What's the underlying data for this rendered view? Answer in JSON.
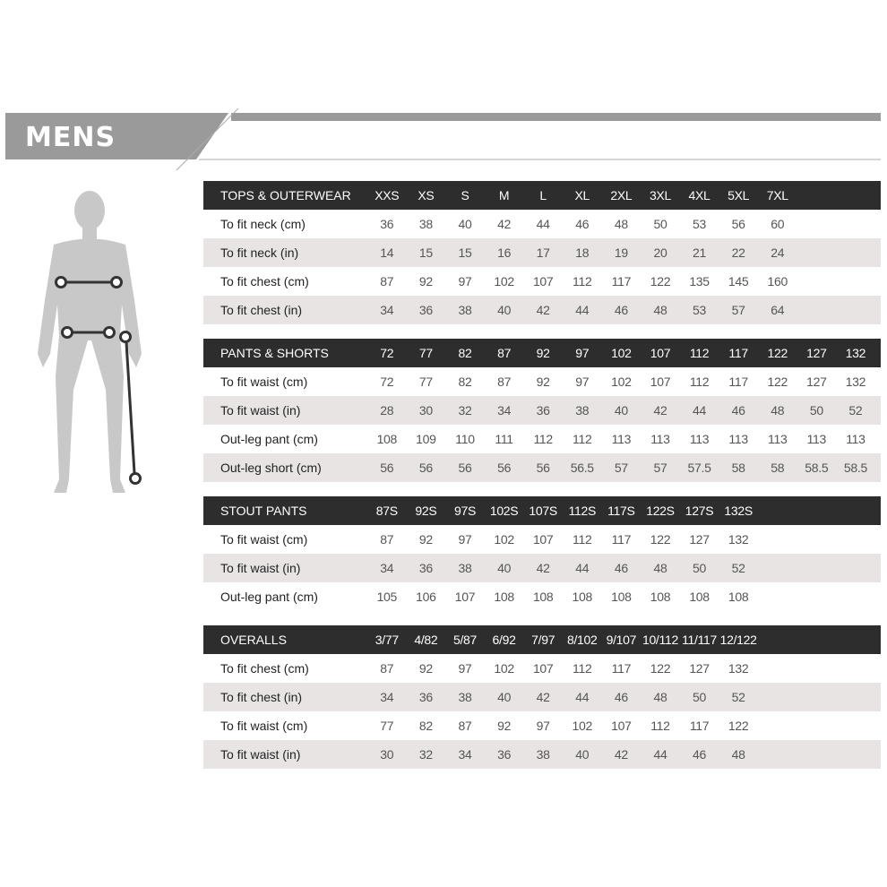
{
  "header": {
    "title": "MENS"
  },
  "colors": {
    "header_bg": "#2d2d2d",
    "stripe": "#e8e4e4",
    "banner": "#9a9a9a",
    "figure": "#c8c8c8"
  },
  "tables": [
    {
      "title": "TOPS & OUTERWEAR",
      "sizes": [
        "XXS",
        "XS",
        "S",
        "M",
        "L",
        "XL",
        "2XL",
        "3XL",
        "4XL",
        "5XL",
        "7XL"
      ],
      "rows": [
        {
          "label": "To fit neck (cm)",
          "values": [
            "36",
            "38",
            "40",
            "42",
            "44",
            "46",
            "48",
            "50",
            "53",
            "56",
            "60"
          ]
        },
        {
          "label": "To fit neck (in)",
          "values": [
            "14",
            "15",
            "15",
            "16",
            "17",
            "18",
            "19",
            "20",
            "21",
            "22",
            "24"
          ]
        },
        {
          "label": "To fit chest (cm)",
          "values": [
            "87",
            "92",
            "97",
            "102",
            "107",
            "112",
            "117",
            "122",
            "135",
            "145",
            "160"
          ]
        },
        {
          "label": "To fit chest (in)",
          "values": [
            "34",
            "36",
            "38",
            "40",
            "42",
            "44",
            "46",
            "48",
            "53",
            "57",
            "64"
          ]
        }
      ]
    },
    {
      "title": "PANTS & SHORTS",
      "sizes": [
        "72",
        "77",
        "82",
        "87",
        "92",
        "97",
        "102",
        "107",
        "112",
        "117",
        "122",
        "127",
        "132"
      ],
      "rows": [
        {
          "label": "To fit waist (cm)",
          "values": [
            "72",
            "77",
            "82",
            "87",
            "92",
            "97",
            "102",
            "107",
            "112",
            "117",
            "122",
            "127",
            "132"
          ]
        },
        {
          "label": "To fit waist (in)",
          "values": [
            "28",
            "30",
            "32",
            "34",
            "36",
            "38",
            "40",
            "42",
            "44",
            "46",
            "48",
            "50",
            "52"
          ]
        },
        {
          "label": "Out-leg pant (cm)",
          "values": [
            "108",
            "109",
            "110",
            "111",
            "112",
            "112",
            "113",
            "113",
            "113",
            "113",
            "113",
            "113",
            "113"
          ]
        },
        {
          "label": "Out-leg short (cm)",
          "values": [
            "56",
            "56",
            "56",
            "56",
            "56",
            "56.5",
            "57",
            "57",
            "57.5",
            "58",
            "58",
            "58.5",
            "58.5"
          ]
        }
      ]
    },
    {
      "title": "STOUT PANTS",
      "sizes": [
        "87S",
        "92S",
        "97S",
        "102S",
        "107S",
        "112S",
        "117S",
        "122S",
        "127S",
        "132S"
      ],
      "rows": [
        {
          "label": "To fit waist (cm)",
          "values": [
            "87",
            "92",
            "97",
            "102",
            "107",
            "112",
            "117",
            "122",
            "127",
            "132"
          ]
        },
        {
          "label": "To fit waist (in)",
          "values": [
            "34",
            "36",
            "38",
            "40",
            "42",
            "44",
            "46",
            "48",
            "50",
            "52"
          ]
        },
        {
          "label": "Out-leg pant (cm)",
          "values": [
            "105",
            "106",
            "107",
            "108",
            "108",
            "108",
            "108",
            "108",
            "108",
            "108"
          ]
        }
      ]
    },
    {
      "title": "OVERALLS",
      "sizes": [
        "3/77",
        "4/82",
        "5/87",
        "6/92",
        "7/97",
        "8/102",
        "9/107",
        "10/112",
        "11/117",
        "12/122"
      ],
      "rows": [
        {
          "label": "To fit chest (cm)",
          "values": [
            "87",
            "92",
            "97",
            "102",
            "107",
            "112",
            "117",
            "122",
            "127",
            "132"
          ]
        },
        {
          "label": "To fit chest (in)",
          "values": [
            "34",
            "36",
            "38",
            "40",
            "42",
            "44",
            "46",
            "48",
            "50",
            "52"
          ]
        },
        {
          "label": "To fit waist (cm)",
          "values": [
            "77",
            "82",
            "87",
            "92",
            "97",
            "102",
            "107",
            "112",
            "117",
            "122"
          ]
        },
        {
          "label": "To fit waist (in)",
          "values": [
            "30",
            "32",
            "34",
            "36",
            "38",
            "40",
            "42",
            "44",
            "46",
            "48"
          ]
        }
      ]
    }
  ]
}
